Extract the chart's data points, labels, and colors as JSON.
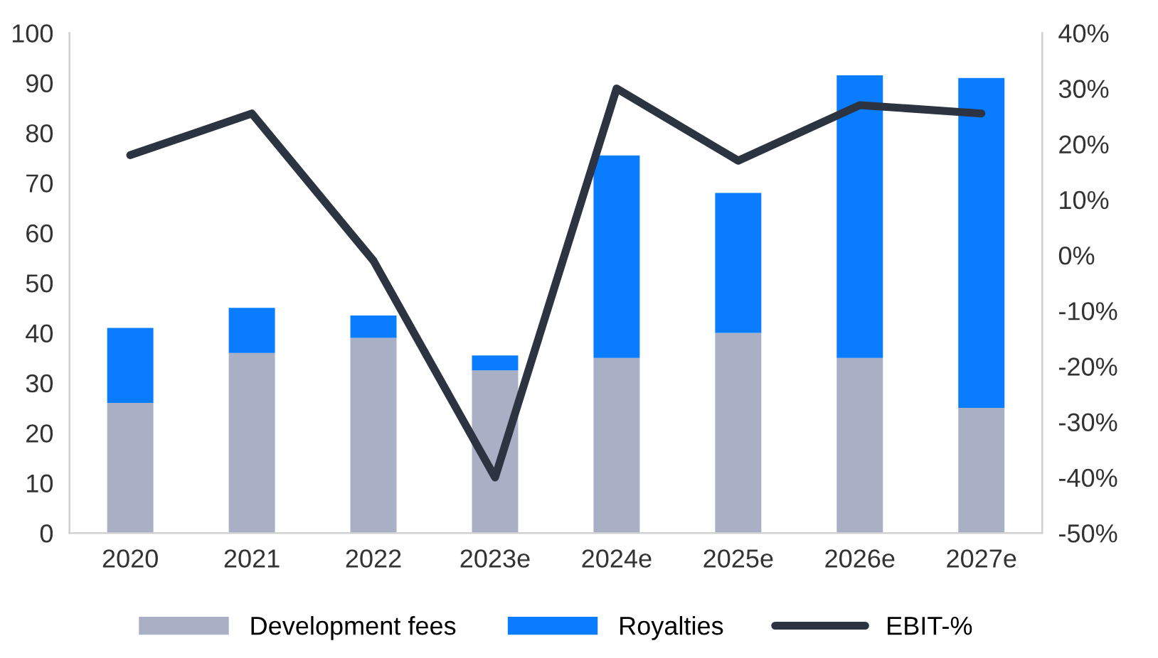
{
  "chart_data": {
    "type": "bar",
    "stacked": true,
    "categories": [
      "2020",
      "2021",
      "2022",
      "2023e",
      "2024e",
      "2025e",
      "2026e",
      "2027e"
    ],
    "series": [
      {
        "name": "Development fees",
        "color": "#a9afc4",
        "values": [
          26,
          36,
          39,
          32.5,
          35,
          40,
          35,
          25
        ]
      },
      {
        "name": "Royalties",
        "color": "#0a7cff",
        "values": [
          15,
          9,
          4.5,
          3,
          40.5,
          28,
          56.5,
          66
        ]
      },
      {
        "name": "EBIT-%",
        "type": "line",
        "axis": "y2",
        "color": "#2b3440",
        "values": [
          18,
          25.5,
          -1,
          -40,
          30,
          17,
          27,
          25.5
        ]
      }
    ],
    "ylim": [
      0,
      100
    ],
    "yticks": [
      0,
      10,
      20,
      30,
      40,
      50,
      60,
      70,
      80,
      90,
      100
    ],
    "y2lim": [
      -50,
      40
    ],
    "y2ticks": [
      {
        "value": -50,
        "label": "-50%"
      },
      {
        "value": -40,
        "label": "-40%"
      },
      {
        "value": -30,
        "label": "-30%"
      },
      {
        "value": -20,
        "label": "-20%"
      },
      {
        "value": -10,
        "label": "-10%"
      },
      {
        "value": 0,
        "label": "0%"
      },
      {
        "value": 10,
        "label": "10%"
      },
      {
        "value": 20,
        "label": "20%"
      },
      {
        "value": 30,
        "label": "30%"
      },
      {
        "value": 40,
        "label": "40%"
      }
    ],
    "legend": "bottom",
    "grid": false
  }
}
